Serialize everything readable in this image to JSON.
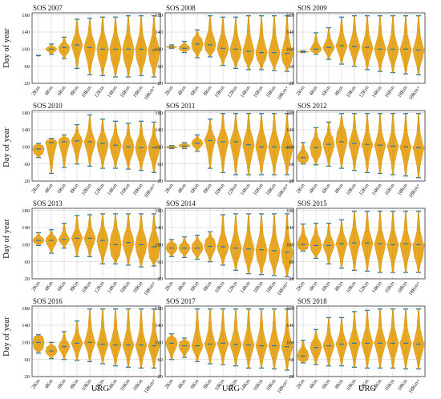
{
  "figure": {
    "ylabel": "Day of year",
    "xlabel": "URG",
    "x_ticks": [
      "2Km",
      "4Km",
      "6Km",
      "8Km",
      "10Km",
      "12Km",
      "14Km",
      "16Km",
      "18Km",
      "18Km+"
    ],
    "y_ticks": [
      20,
      60,
      100,
      140,
      180
    ],
    "ylim": [
      20,
      185
    ],
    "colors": {
      "violin": "#e8a317",
      "whisker": "#1f77b4",
      "grid": "#c8c8c8"
    }
  },
  "chart_data": [
    {
      "type": "violin",
      "title": "SOS 2007",
      "categories": [
        "2Km",
        "4Km",
        "6Km",
        "8Km",
        "10Km",
        "12Km",
        "14Km",
        "16Km",
        "18Km",
        "18Km+"
      ],
      "min": [
        85,
        88,
        78,
        55,
        40,
        38,
        35,
        35,
        38,
        35
      ],
      "max": [
        85,
        112,
        128,
        170,
        172,
        175,
        175,
        178,
        178,
        178
      ],
      "median": [
        85,
        100,
        104,
        110,
        104,
        100,
        100,
        100,
        100,
        98
      ],
      "q_low": [
        85,
        96,
        92,
        100,
        88,
        78,
        75,
        75,
        75,
        72
      ],
      "q_high": [
        85,
        104,
        110,
        120,
        118,
        116,
        115,
        115,
        112,
        110
      ]
    },
    {
      "type": "violin",
      "title": "SOS 2008",
      "categories": [
        "2Km",
        "4Km",
        "6Km",
        "8Km",
        "10Km",
        "12Km",
        "14Km",
        "16Km",
        "18Km",
        "18Km+"
      ],
      "min": [
        102,
        92,
        80,
        82,
        62,
        55,
        52,
        52,
        50,
        48
      ],
      "max": [
        110,
        118,
        145,
        178,
        175,
        175,
        178,
        178,
        178,
        178
      ],
      "median": [
        105,
        102,
        112,
        110,
        102,
        100,
        95,
        92,
        92,
        90
      ],
      "q_low": [
        104,
        98,
        98,
        96,
        88,
        82,
        76,
        76,
        76,
        70
      ],
      "q_high": [
        106,
        108,
        125,
        124,
        116,
        112,
        108,
        105,
        105,
        102
      ]
    },
    {
      "type": "violin",
      "title": "SOS 2009",
      "categories": [
        "2Km",
        "4Km",
        "6Km",
        "8Km",
        "10Km",
        "12Km",
        "14Km",
        "16Km",
        "18Km",
        "18Km+"
      ],
      "min": [
        92,
        88,
        76,
        65,
        60,
        52,
        48,
        45,
        42,
        40
      ],
      "max": [
        96,
        138,
        150,
        175,
        178,
        178,
        178,
        178,
        178,
        178
      ],
      "median": [
        94,
        100,
        104,
        108,
        106,
        104,
        100,
        100,
        100,
        98
      ],
      "q_low": [
        93,
        94,
        96,
        98,
        96,
        90,
        86,
        84,
        84,
        82
      ],
      "q_high": [
        95,
        106,
        112,
        116,
        116,
        114,
        112,
        110,
        110,
        108
      ]
    },
    {
      "type": "violin",
      "title": "SOS 2010",
      "categories": [
        "2Km",
        "4Km",
        "6Km",
        "8Km",
        "10Km",
        "12Km",
        "14Km",
        "16Km",
        "18Km",
        "18Km+"
      ],
      "min": [
        75,
        38,
        52,
        60,
        55,
        50,
        50,
        48,
        45,
        40
      ],
      "max": [
        108,
        120,
        128,
        152,
        175,
        165,
        160,
        155,
        160,
        158
      ],
      "median": [
        95,
        110,
        112,
        114,
        112,
        108,
        104,
        100,
        98,
        98
      ],
      "q_low": [
        84,
        98,
        100,
        104,
        100,
        90,
        86,
        84,
        82,
        80
      ],
      "q_high": [
        104,
        116,
        120,
        122,
        120,
        118,
        116,
        114,
        112,
        110
      ]
    },
    {
      "type": "violin",
      "title": "SOS 2011",
      "categories": [
        "2Km",
        "4Km",
        "6Km",
        "8Km",
        "10Km",
        "12Km",
        "14Km",
        "16Km",
        "18Km",
        "18Km+"
      ],
      "min": [
        96,
        96,
        90,
        50,
        40,
        35,
        35,
        35,
        35,
        35
      ],
      "max": [
        103,
        110,
        128,
        165,
        178,
        178,
        178,
        178,
        178,
        178
      ],
      "median": [
        99,
        102,
        108,
        115,
        112,
        112,
        105,
        100,
        100,
        98
      ],
      "q_low": [
        97,
        100,
        102,
        108,
        100,
        96,
        88,
        86,
        84,
        80
      ],
      "q_high": [
        101,
        106,
        116,
        124,
        124,
        122,
        120,
        118,
        115,
        112
      ]
    },
    {
      "type": "violin",
      "title": "SOS 2012",
      "categories": [
        "2Km",
        "4Km",
        "6Km",
        "8Km",
        "10Km",
        "12Km",
        "14Km",
        "16Km",
        "18Km",
        "18Km+"
      ],
      "min": [
        60,
        58,
        55,
        50,
        45,
        40,
        38,
        35,
        32,
        28
      ],
      "max": [
        110,
        145,
        158,
        178,
        178,
        178,
        178,
        178,
        178,
        178
      ],
      "median": [
        75,
        98,
        106,
        112,
        108,
        106,
        104,
        102,
        100,
        98
      ],
      "q_low": [
        65,
        80,
        92,
        98,
        96,
        96,
        92,
        90,
        88,
        86
      ],
      "q_high": [
        85,
        112,
        120,
        135,
        118,
        112,
        112,
        110,
        108,
        106
      ]
    },
    {
      "type": "violin",
      "title": "SOS 2013",
      "categories": [
        "2Km",
        "4Km",
        "6Km",
        "8Km",
        "10Km",
        "12Km",
        "14Km",
        "16Km",
        "18Km",
        "18Km+"
      ],
      "min": [
        98,
        80,
        92,
        72,
        72,
        55,
        55,
        52,
        48,
        50
      ],
      "max": [
        128,
        135,
        150,
        168,
        170,
        172,
        172,
        172,
        172,
        172
      ],
      "median": [
        110,
        110,
        112,
        115,
        115,
        110,
        100,
        105,
        100,
        95
      ],
      "q_low": [
        104,
        100,
        106,
        108,
        104,
        92,
        75,
        90,
        80,
        68
      ],
      "q_high": [
        116,
        118,
        118,
        122,
        124,
        124,
        122,
        120,
        118,
        114
      ]
    },
    {
      "type": "violin",
      "title": "SOS 2014",
      "categories": [
        "2Km",
        "4Km",
        "6Km",
        "8Km",
        "10Km",
        "12Km",
        "14Km",
        "16Km",
        "18Km",
        "18Km+"
      ],
      "min": [
        72,
        70,
        66,
        60,
        52,
        40,
        32,
        30,
        28,
        25
      ],
      "max": [
        112,
        118,
        122,
        130,
        170,
        172,
        172,
        172,
        172,
        172
      ],
      "median": [
        92,
        92,
        92,
        96,
        95,
        92,
        90,
        88,
        86,
        82
      ],
      "q_low": [
        84,
        84,
        82,
        84,
        82,
        76,
        70,
        66,
        64,
        58
      ],
      "q_high": [
        102,
        100,
        104,
        112,
        106,
        104,
        102,
        100,
        98,
        96
      ]
    },
    {
      "type": "violin",
      "title": "SOS 2015",
      "categories": [
        "2Km",
        "4Km",
        "6Km",
        "8Km",
        "10Km",
        "12Km",
        "14Km",
        "16Km",
        "18Km",
        "18Km+"
      ],
      "min": [
        85,
        68,
        55,
        45,
        40,
        38,
        35,
        35,
        35,
        35
      ],
      "max": [
        148,
        150,
        150,
        158,
        178,
        178,
        178,
        178,
        178,
        178
      ],
      "median": [
        100,
        98,
        98,
        102,
        104,
        104,
        102,
        100,
        102,
        100
      ],
      "q_low": [
        90,
        84,
        88,
        92,
        92,
        90,
        86,
        84,
        84,
        72
      ],
      "q_high": [
        112,
        112,
        108,
        112,
        118,
        114,
        112,
        110,
        108,
        106
      ]
    },
    {
      "type": "violin",
      "title": "SOS 2016",
      "categories": [
        "2Km",
        "4Km",
        "6Km",
        "8Km",
        "10Km",
        "12Km",
        "14Km",
        "16Km",
        "18Km",
        "18Km+"
      ],
      "min": [
        75,
        62,
        60,
        58,
        55,
        50,
        45,
        42,
        40,
        40
      ],
      "max": [
        118,
        100,
        125,
        150,
        178,
        178,
        178,
        178,
        178,
        178
      ],
      "median": [
        100,
        80,
        90,
        98,
        100,
        96,
        94,
        94,
        94,
        92
      ],
      "q_low": [
        84,
        72,
        82,
        90,
        92,
        86,
        84,
        84,
        82,
        80
      ],
      "q_high": [
        114,
        90,
        98,
        106,
        108,
        104,
        104,
        102,
        100,
        100
      ]
    },
    {
      "type": "violin",
      "title": "SOS 2017",
      "categories": [
        "2Km",
        "4Km",
        "6Km",
        "8Km",
        "10Km",
        "12Km",
        "14Km",
        "16Km",
        "18Km",
        "18Km+"
      ],
      "min": [
        60,
        65,
        55,
        50,
        48,
        45,
        40,
        40,
        38,
        35
      ],
      "max": [
        120,
        110,
        178,
        178,
        178,
        178,
        178,
        178,
        178,
        178
      ],
      "median": [
        98,
        92,
        92,
        96,
        98,
        95,
        94,
        92,
        92,
        90
      ],
      "q_low": [
        86,
        82,
        82,
        86,
        88,
        84,
        82,
        82,
        80,
        78
      ],
      "q_high": [
        110,
        102,
        102,
        104,
        104,
        104,
        104,
        102,
        102,
        100
      ]
    },
    {
      "type": "violin",
      "title": "SOS 2018",
      "categories": [
        "2Km",
        "4Km",
        "6Km",
        "8Km",
        "10Km",
        "12Km",
        "14Km",
        "16Km",
        "18Km",
        "18Km+"
      ],
      "min": [
        52,
        48,
        45,
        45,
        42,
        40,
        40,
        40,
        38,
        38
      ],
      "max": [
        105,
        130,
        158,
        158,
        172,
        175,
        178,
        178,
        178,
        178
      ],
      "median": [
        68,
        88,
        92,
        96,
        98,
        98,
        98,
        98,
        98,
        96
      ],
      "q_low": [
        58,
        76,
        82,
        86,
        88,
        86,
        86,
        84,
        84,
        80
      ],
      "q_high": [
        80,
        100,
        102,
        104,
        108,
        110,
        110,
        110,
        108,
        106
      ]
    }
  ]
}
